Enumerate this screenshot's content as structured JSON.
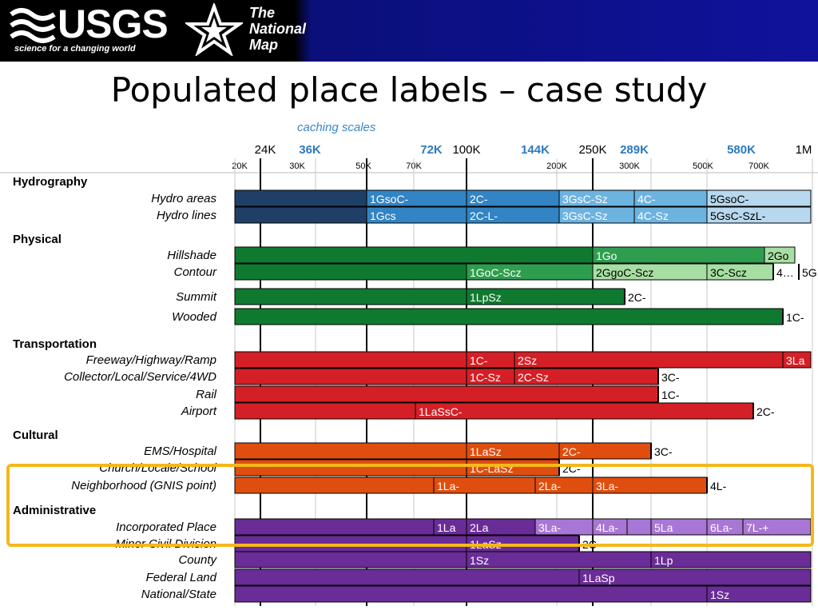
{
  "banner": {
    "logo_text": "USGS",
    "logo_subtitle": "science for a changing world",
    "map_logo_lines": [
      "The",
      "National",
      "Map"
    ]
  },
  "title": "Populated place labels – case study",
  "caching_label": "caching scales",
  "scales_major": [
    {
      "label": "24K",
      "bold": false
    },
    {
      "label": "36K",
      "bold": true
    },
    {
      "label": "72K",
      "bold": true
    },
    {
      "label": "100K",
      "bold": false
    },
    {
      "label": "144K",
      "bold": true
    },
    {
      "label": "250K",
      "bold": false
    },
    {
      "label": "289K",
      "bold": true
    },
    {
      "label": "580K",
      "bold": true
    },
    {
      "label": "1M",
      "bold": false
    }
  ],
  "scales_minor": [
    "20K",
    "30K",
    "50K",
    "70K",
    "200K",
    "300K",
    "500K",
    "700K"
  ],
  "colors": {
    "hydro_dark": "#1f3f66",
    "hydro_mid": "#3284c4",
    "hydro_light": "#6db3e0",
    "hydro_pale": "#b7d8ee",
    "phys_dark": "#0f7a2f",
    "phys_mid": "#2e9e4e",
    "phys_light": "#a7dea2",
    "trans": "#d51f26",
    "cult": "#e04e0f",
    "admin_dark": "#6a2c96",
    "admin_light": "#a876d4",
    "highlight": "#f4b81c"
  },
  "sections": [
    {
      "name": "Hydrography",
      "rows": [
        {
          "label": "Hydro areas",
          "segments": [
            {
              "text": "",
              "color": "hydro_dark"
            },
            {
              "text": "1GsoC-",
              "color": "hydro_mid"
            },
            {
              "text": "2C-",
              "color": "hydro_mid"
            },
            {
              "text": "3GsC-Sz",
              "color": "hydro_light"
            },
            {
              "text": "4C-",
              "color": "hydro_light"
            },
            {
              "text": "5GsoC-",
              "color": "hydro_pale"
            }
          ]
        },
        {
          "label": "Hydro lines",
          "segments": [
            {
              "text": "",
              "color": "hydro_dark"
            },
            {
              "text": "1Gcs",
              "color": "hydro_mid"
            },
            {
              "text": "2C-L-",
              "color": "hydro_mid"
            },
            {
              "text": "3GsC-Sz",
              "color": "hydro_light"
            },
            {
              "text": "4C-Sz",
              "color": "hydro_light"
            },
            {
              "text": "5GsC-SzL-",
              "color": "hydro_pale"
            }
          ]
        }
      ]
    },
    {
      "name": "Physical",
      "rows": [
        {
          "label": "Hillshade",
          "segments": [
            {
              "text": "",
              "color": "phys_dark"
            },
            {
              "text": "1Go",
              "color": "phys_mid"
            },
            {
              "text": "2Go",
              "color": "phys_light"
            }
          ]
        },
        {
          "label": "Contour",
          "segments": [
            {
              "text": "",
              "color": "phys_dark"
            },
            {
              "text": "1GoC-Scz",
              "color": "phys_mid"
            },
            {
              "text": "2GgoC-Scz",
              "color": "phys_light"
            },
            {
              "text": "3C-Scz",
              "color": "phys_light"
            },
            {
              "text": "4…",
              "color": "white"
            },
            {
              "text": "5G",
              "color": "white"
            }
          ]
        },
        {
          "label": "Summit",
          "segments": [
            {
              "text": "",
              "color": "phys_dark"
            },
            {
              "text": "1LpSz",
              "color": "phys_dark"
            },
            {
              "text": "2C-",
              "color": "white"
            }
          ]
        },
        {
          "label": "Wooded",
          "segments": [
            {
              "text": "",
              "color": "phys_dark"
            },
            {
              "text": "1C-",
              "color": "white"
            }
          ]
        }
      ]
    },
    {
      "name": "Transportation",
      "rows": [
        {
          "label": "Freeway/Highway/Ramp",
          "segments": [
            {
              "text": "",
              "color": "trans"
            },
            {
              "text": "1C-",
              "color": "trans"
            },
            {
              "text": "2Sz",
              "color": "trans"
            },
            {
              "text": "3La",
              "color": "trans"
            }
          ]
        },
        {
          "label": "Collector/Local/Service/4WD",
          "segments": [
            {
              "text": "",
              "color": "trans"
            },
            {
              "text": "1C-Sz",
              "color": "trans"
            },
            {
              "text": "2C-Sz",
              "color": "trans"
            },
            {
              "text": "3C-",
              "color": "white"
            }
          ]
        },
        {
          "label": "Rail",
          "segments": [
            {
              "text": "",
              "color": "trans"
            },
            {
              "text": "1C-",
              "color": "white"
            }
          ]
        },
        {
          "label": "Airport",
          "segments": [
            {
              "text": "",
              "color": "trans"
            },
            {
              "text": "1LaSsC-",
              "color": "trans"
            },
            {
              "text": "2C-",
              "color": "white"
            }
          ]
        }
      ]
    },
    {
      "name": "Cultural",
      "rows": [
        {
          "label": "EMS/Hospital",
          "segments": [
            {
              "text": "",
              "color": "cult"
            },
            {
              "text": "1LaSz",
              "color": "cult"
            },
            {
              "text": "2C-",
              "color": "cult"
            },
            {
              "text": "3C-",
              "color": "white"
            }
          ]
        },
        {
          "label": "Church/Locale/School",
          "segments": [
            {
              "text": "",
              "color": "cult"
            },
            {
              "text": "1C-LaSz",
              "color": "cult"
            },
            {
              "text": "2C-",
              "color": "white"
            }
          ]
        },
        {
          "label": "Neighborhood (GNIS point)",
          "segments": [
            {
              "text": "",
              "color": "cult"
            },
            {
              "text": "1La-",
              "color": "cult"
            },
            {
              "text": "2La-",
              "color": "cult"
            },
            {
              "text": "3La-",
              "color": "cult"
            },
            {
              "text": "4L-",
              "color": "white"
            }
          ]
        }
      ]
    },
    {
      "name": "Administrative",
      "rows": [
        {
          "label": "Incorporated Place",
          "segments": [
            {
              "text": "",
              "color": "admin_dark"
            },
            {
              "text": "1La",
              "color": "admin_dark"
            },
            {
              "text": "2La",
              "color": "admin_dark"
            },
            {
              "text": "3La-",
              "color": "admin_light"
            },
            {
              "text": "4La-",
              "color": "admin_light"
            },
            {
              "text": "",
              "color": "admin_light"
            },
            {
              "text": "5La",
              "color": "admin_light"
            },
            {
              "text": "6La-",
              "color": "admin_light"
            },
            {
              "text": "7L-+",
              "color": "admin_light"
            }
          ]
        },
        {
          "label": "Minor Civil Division",
          "segments": [
            {
              "text": "",
              "color": "admin_dark"
            },
            {
              "text": "1LaSz",
              "color": "admin_dark"
            },
            {
              "text": "2C-",
              "color": "white"
            }
          ]
        },
        {
          "label": "County",
          "segments": [
            {
              "text": "",
              "color": "admin_dark"
            },
            {
              "text": "1Sz",
              "color": "admin_dark"
            },
            {
              "text": "1Lp",
              "color": "admin_dark"
            }
          ]
        },
        {
          "label": "Federal Land",
          "segments": [
            {
              "text": "",
              "color": "admin_dark"
            },
            {
              "text": "1LaSp",
              "color": "admin_dark"
            }
          ]
        },
        {
          "label": "National/State",
          "segments": [
            {
              "text": "",
              "color": "admin_dark"
            },
            {
              "text": "1Sz",
              "color": "admin_dark"
            }
          ]
        }
      ]
    }
  ]
}
